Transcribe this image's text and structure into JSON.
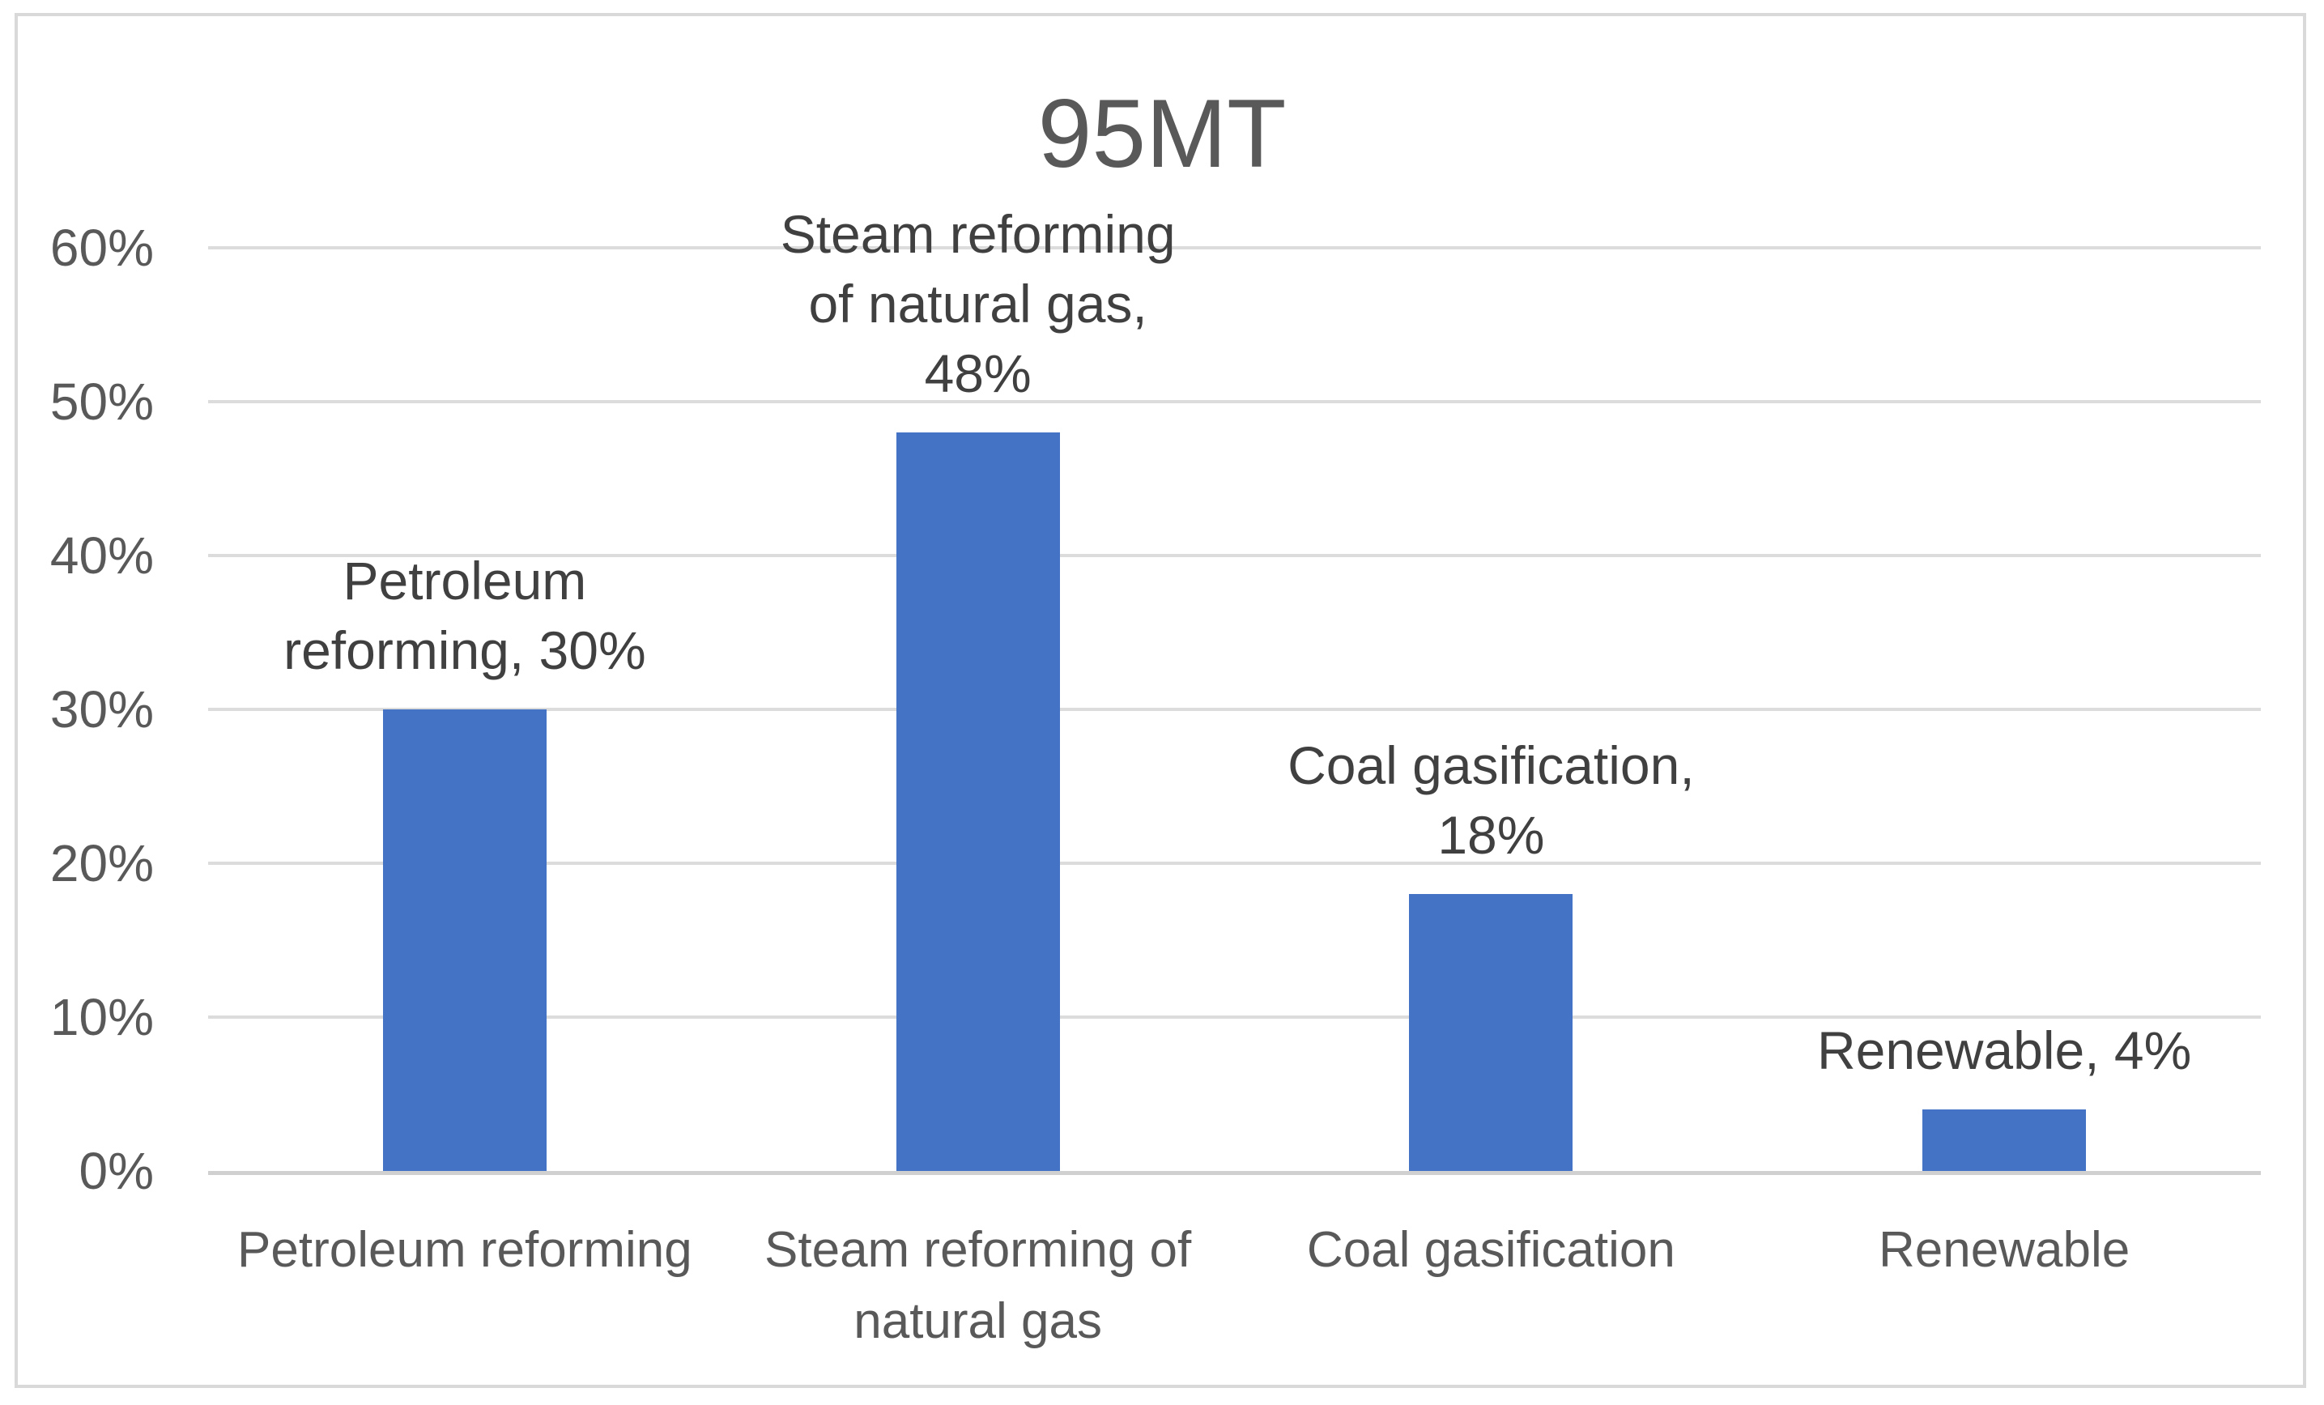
{
  "chart_data": {
    "type": "bar",
    "title": "95MT",
    "categories": [
      "Petroleum reforming",
      "Steam reforming of natural gas",
      "Coal gasification",
      "Renewable"
    ],
    "category_label_lines": [
      [
        "Petroleum reforming"
      ],
      [
        "Steam reforming of",
        "natural gas"
      ],
      [
        "Coal gasification"
      ],
      [
        "Renewable"
      ]
    ],
    "values": [
      30,
      48,
      18,
      4
    ],
    "value_unit": "%",
    "data_labels": [
      "Petroleum reforming, 30%",
      "Steam reforming of natural gas, 48%",
      "Coal gasification, 18%",
      "Renewable, 4%"
    ],
    "data_label_lines": [
      [
        "Petroleum",
        "reforming, 30%"
      ],
      [
        "Steam reforming",
        "of natural gas,",
        "48%"
      ],
      [
        "Coal gasification,",
        "18%"
      ],
      [
        "Renewable, 4%"
      ]
    ],
    "xlabel": "",
    "ylabel": "",
    "ylim": [
      0,
      60
    ],
    "ytick_interval": 10,
    "ytick_labels": [
      "0%",
      "10%",
      "20%",
      "30%",
      "40%",
      "50%",
      "60%"
    ],
    "grid": true,
    "legend": "none",
    "colors": {
      "bar": "#4472c4",
      "gridline": "#dcdcdc",
      "axis_line": "#d0d0d0",
      "title_text": "#595959",
      "tick_text": "#595959",
      "data_label_text": "#404040",
      "category_text": "#595959",
      "frame_border": "#d9d9d9",
      "background": "#ffffff"
    }
  }
}
